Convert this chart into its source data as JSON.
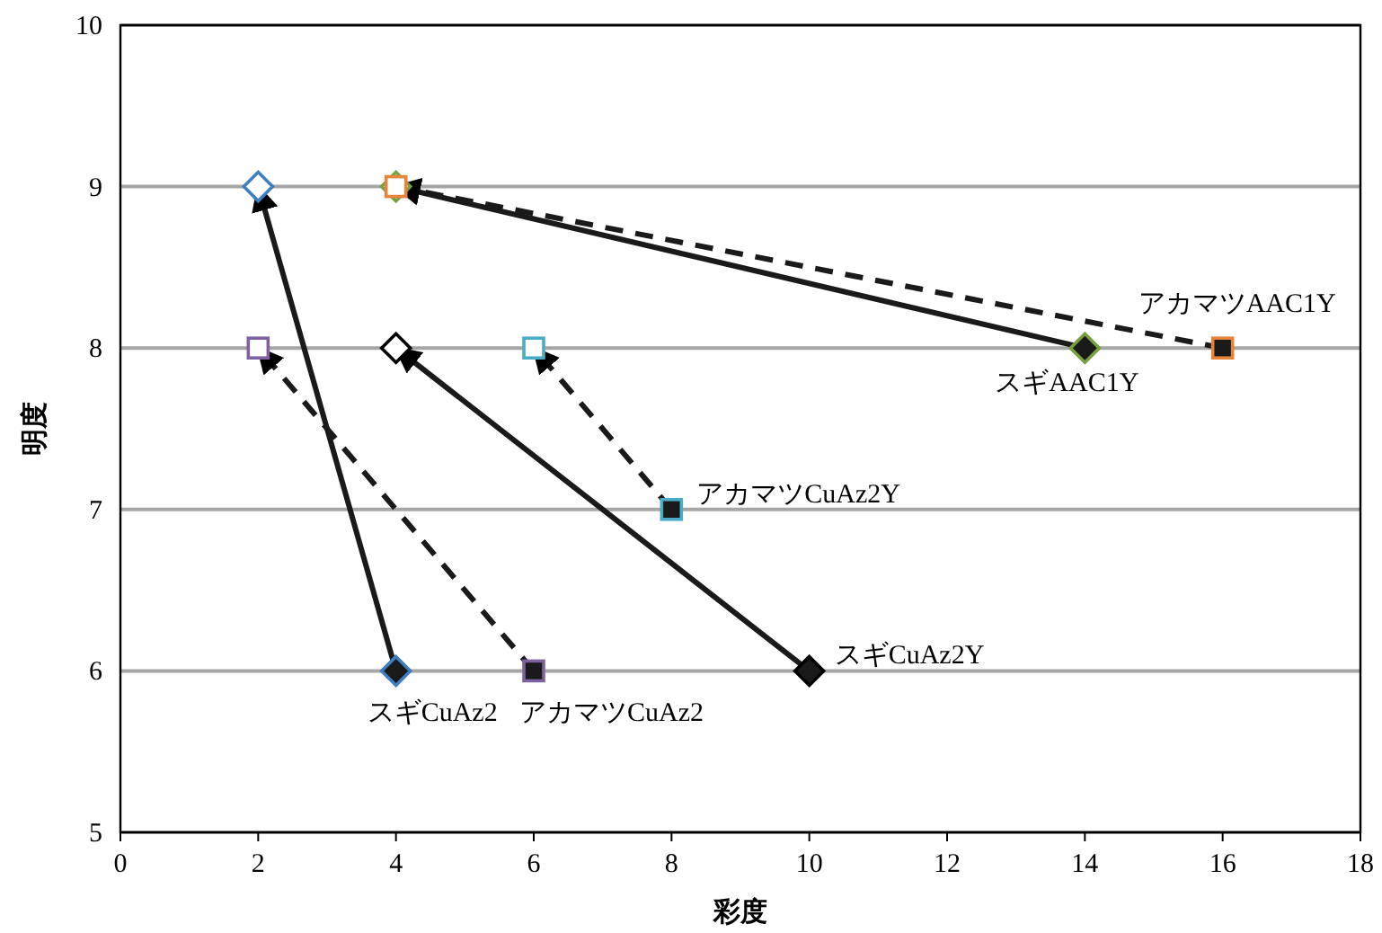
{
  "chart_data": {
    "type": "line",
    "xlabel": "彩度",
    "ylabel": "明度",
    "xlim": [
      0,
      18
    ],
    "xticks": [
      0,
      2,
      4,
      6,
      8,
      10,
      12,
      14,
      16,
      18
    ],
    "ylim": [
      5,
      10
    ],
    "yticks": [
      5,
      6,
      7,
      8,
      9,
      10
    ],
    "grid": "y",
    "series": [
      {
        "name": "スギCuAz2",
        "x": [
          4,
          2
        ],
        "values": [
          6,
          9
        ],
        "color": "#3f7fc1",
        "line_style": "solid",
        "marker": "diamond"
      },
      {
        "name": "アカマツCuAz2",
        "x": [
          6,
          2
        ],
        "values": [
          6,
          8
        ],
        "color": "#7e62a0",
        "line_style": "dashed",
        "marker": "square"
      },
      {
        "name": "スギCuAz2Y",
        "x": [
          10,
          4
        ],
        "values": [
          6,
          8
        ],
        "color": "#000000",
        "line_style": "solid",
        "marker": "diamond"
      },
      {
        "name": "アカマツCuAz2Y",
        "x": [
          8,
          6
        ],
        "values": [
          7,
          8
        ],
        "color": "#4aacc6",
        "line_style": "dashed",
        "marker": "square"
      },
      {
        "name": "スギAAC1Y",
        "x": [
          14,
          4
        ],
        "values": [
          8,
          9
        ],
        "color": "#77a040",
        "line_style": "solid",
        "marker": "diamond"
      },
      {
        "name": "アカマツAAC1Y",
        "x": [
          16,
          4
        ],
        "values": [
          8,
          9
        ],
        "color": "#e6843c",
        "line_style": "dashed",
        "marker": "square"
      }
    ]
  }
}
